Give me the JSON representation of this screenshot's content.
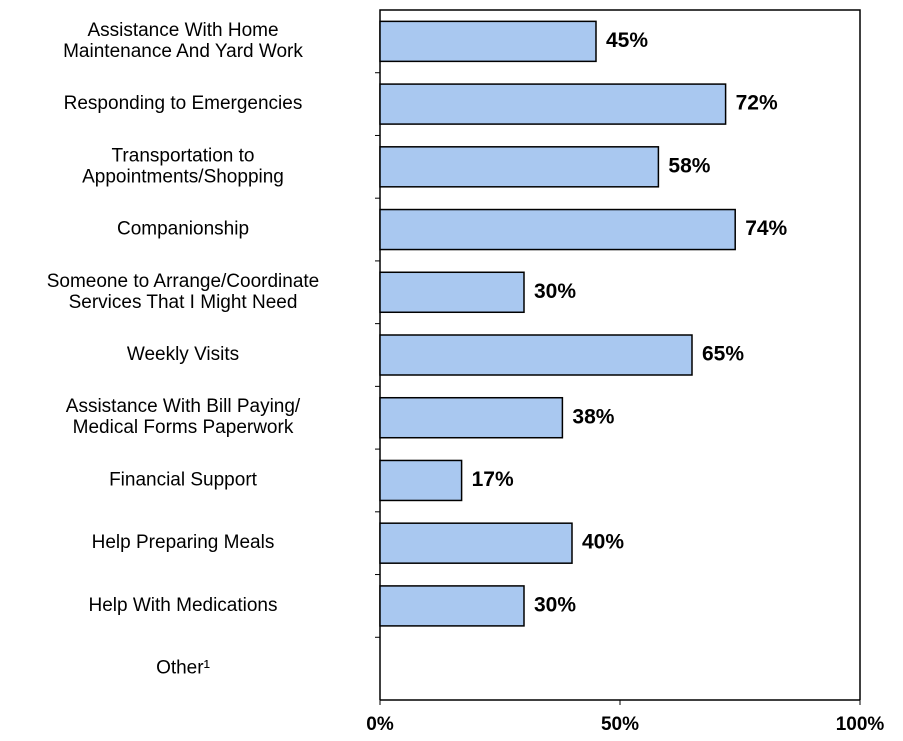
{
  "chart_data": {
    "type": "bar",
    "orientation": "horizontal",
    "categories": [
      [
        "Assistance With Home",
        "Maintenance And Yard Work"
      ],
      [
        "Responding to Emergencies"
      ],
      [
        "Transportation to",
        "Appointments/Shopping"
      ],
      [
        "Companionship"
      ],
      [
        "Someone to Arrange/Coordinate",
        "Services That I Might Need"
      ],
      [
        "Weekly Visits"
      ],
      [
        "Assistance With Bill Paying/",
        "Medical Forms Paperwork"
      ],
      [
        "Financial Support"
      ],
      [
        "Help Preparing Meals"
      ],
      [
        "Help With Medications"
      ],
      [
        "Other¹"
      ]
    ],
    "values": [
      45,
      72,
      58,
      74,
      30,
      65,
      38,
      17,
      40,
      30,
      null
    ],
    "value_labels": [
      "45%",
      "72%",
      "58%",
      "74%",
      "30%",
      "65%",
      "38%",
      "17%",
      "40%",
      "30%",
      null
    ],
    "color": "#a9c8f0",
    "xlim": [
      0,
      100
    ],
    "xticks": [
      {
        "value": 0,
        "label": "0%"
      },
      {
        "value": 50,
        "label": "50%"
      },
      {
        "value": 100,
        "label": "100%"
      }
    ]
  }
}
